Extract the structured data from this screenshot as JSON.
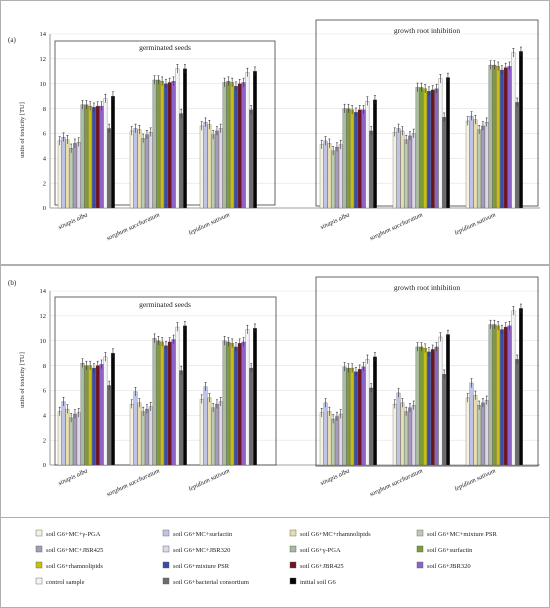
{
  "chart_data": [
    {
      "type": "bar",
      "panel_label": "(a)",
      "ylabel": "units of toxicity [TU]",
      "ylim": [
        0,
        14
      ],
      "yticks": [
        0,
        2,
        4,
        6,
        8,
        10,
        12,
        14
      ],
      "grid": true,
      "groups": [
        {
          "title": "germinated seeds",
          "categories": [
            "sinapis alba",
            "sorghum saccharatum",
            "lepidium sativum"
          ],
          "values": [
            [
              5.4,
              5.7,
              5.5,
              4.8,
              5.2,
              5.3,
              8.3,
              8.3,
              8.2,
              8.1,
              8.2,
              8.2,
              8.8,
              6.4,
              9.0
            ],
            [
              6.2,
              6.4,
              6.3,
              5.6,
              5.9,
              6.1,
              10.3,
              10.3,
              10.2,
              10.0,
              10.1,
              10.2,
              11.2,
              7.6,
              11.2
            ],
            [
              6.6,
              6.9,
              6.7,
              5.9,
              6.2,
              6.4,
              10.1,
              10.2,
              10.1,
              9.8,
              10.0,
              10.1,
              10.9,
              7.9,
              11.0
            ]
          ]
        },
        {
          "title": "growth root inhibition",
          "categories": [
            "sinapis alba",
            "sorghum saccharatum",
            "lepidium sativum"
          ],
          "values": [
            [
              5.1,
              5.4,
              5.2,
              4.6,
              4.9,
              5.1,
              8.0,
              8.0,
              7.9,
              7.7,
              7.9,
              7.9,
              8.6,
              6.2,
              8.7
            ],
            [
              6.1,
              6.4,
              6.2,
              5.5,
              5.8,
              6.0,
              9.7,
              9.7,
              9.6,
              9.4,
              9.5,
              9.6,
              10.4,
              7.3,
              10.5
            ],
            [
              7.0,
              7.4,
              7.1,
              6.3,
              6.6,
              6.9,
              11.5,
              11.5,
              11.4,
              11.1,
              11.3,
              11.4,
              12.5,
              8.5,
              12.6
            ]
          ]
        }
      ]
    },
    {
      "type": "bar",
      "panel_label": "(b)",
      "ylabel": "units of toxicity [TU]",
      "ylim": [
        0,
        14
      ],
      "yticks": [
        0,
        2,
        4,
        6,
        8,
        10,
        12,
        14
      ],
      "grid": true,
      "groups": [
        {
          "title": "germinated seeds",
          "categories": [
            "sinapis alba",
            "sorghum saccharatum",
            "lepidium sativum"
          ],
          "values": [
            [
              4.3,
              5.1,
              4.5,
              3.8,
              4.1,
              4.2,
              8.2,
              8.0,
              8.0,
              7.8,
              8.0,
              8.1,
              8.7,
              6.4,
              9.0
            ],
            [
              4.9,
              5.9,
              5.0,
              4.3,
              4.5,
              4.7,
              10.2,
              10.0,
              9.9,
              9.6,
              9.9,
              10.1,
              11.1,
              7.6,
              11.2
            ],
            [
              5.3,
              6.3,
              5.4,
              4.6,
              4.9,
              5.1,
              10.0,
              9.9,
              9.8,
              9.5,
              9.8,
              9.9,
              10.9,
              7.8,
              11.0
            ]
          ]
        },
        {
          "title": "growth root inhibition",
          "categories": [
            "sinapis alba",
            "sorghum saccharatum",
            "lepidium sativum"
          ],
          "values": [
            [
              4.2,
              5.0,
              4.3,
              3.7,
              3.9,
              4.1,
              7.9,
              7.8,
              7.8,
              7.5,
              7.7,
              7.9,
              8.5,
              6.2,
              8.7
            ],
            [
              4.9,
              5.8,
              5.0,
              4.3,
              4.6,
              4.8,
              9.5,
              9.5,
              9.4,
              9.1,
              9.3,
              9.5,
              10.3,
              7.3,
              10.5
            ],
            [
              5.4,
              6.6,
              5.6,
              4.8,
              5.0,
              5.2,
              11.3,
              11.3,
              11.2,
              10.9,
              11.1,
              11.2,
              12.4,
              8.5,
              12.6
            ]
          ]
        }
      ]
    }
  ],
  "legend": [
    {
      "name": "soil G6+MC+γ-PGA",
      "color": "#f3f2e0"
    },
    {
      "name": "soil G6+MC+surfactin",
      "color": "#bfc4e6"
    },
    {
      "name": "soil G6+MC+rhamnolipids",
      "color": "#e8ddb0"
    },
    {
      "name": "soil G6+MC+mixture PSR",
      "color": "#bcccb3"
    },
    {
      "name": "soil G6+MC+JBR425",
      "color": "#a89ab9"
    },
    {
      "name": "soil G6+MC+JBR320",
      "color": "#dcd8ea"
    },
    {
      "name": "soil G6+γ-PGA",
      "color": "#a9bb9e"
    },
    {
      "name": "soil G6+surfactin",
      "color": "#7f9c3a"
    },
    {
      "name": "soil G6+rhamnolipids",
      "color": "#c8c010"
    },
    {
      "name": "soil G6+mixture PSR",
      "color": "#3a4ba8"
    },
    {
      "name": "soil G6+JBR425",
      "color": "#6e1420"
    },
    {
      "name": "soil G6+JBR320",
      "color": "#8c64c8"
    },
    {
      "name": "control sample",
      "color": "#f4f4f6"
    },
    {
      "name": "soil G6+bacterial consortium",
      "color": "#6c6c6c"
    },
    {
      "name": "initial soil G6",
      "color": "#050505"
    }
  ]
}
